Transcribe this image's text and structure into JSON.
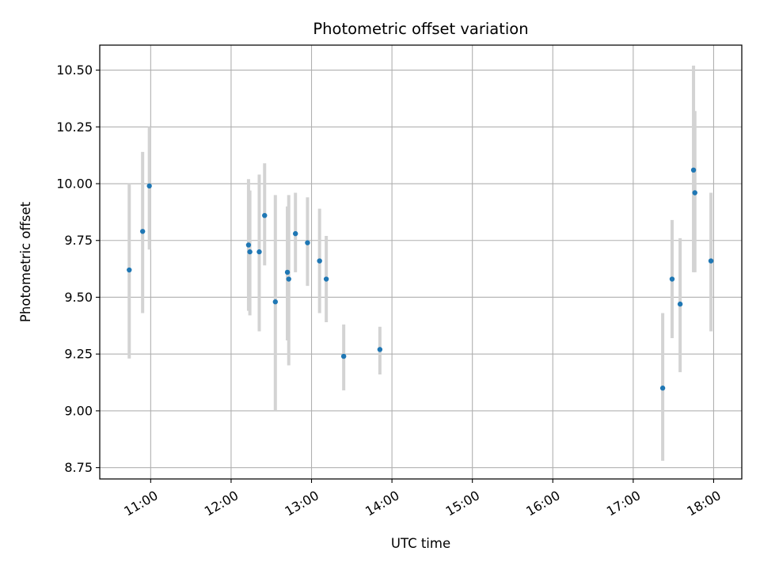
{
  "chart_data": {
    "type": "scatter",
    "title": "Photometric offset variation",
    "xlabel": "UTC time",
    "ylabel": "Photometric offset",
    "x_is_time": true,
    "xlim": [
      "10:22",
      "18:21"
    ],
    "ylim": [
      8.7,
      10.61
    ],
    "xticks": [
      "11:00",
      "12:00",
      "13:00",
      "14:00",
      "15:00",
      "16:00",
      "17:00",
      "18:00"
    ],
    "yticks": [
      "8.75",
      "9.00",
      "9.25",
      "9.50",
      "9.75",
      "10.00",
      "10.25",
      "10.50"
    ],
    "grid": true,
    "colors": {
      "point": "#1f77b4",
      "errorbar": "#d3d3d3",
      "grid": "#b0b0b0"
    },
    "points": [
      {
        "x": "10:44",
        "y": 9.62,
        "ylo": 9.23,
        "yhi": 10.0
      },
      {
        "x": "10:54",
        "y": 9.79,
        "ylo": 9.43,
        "yhi": 10.14
      },
      {
        "x": "10:59",
        "y": 9.99,
        "ylo": 9.71,
        "yhi": 10.25
      },
      {
        "x": "12:13",
        "y": 9.73,
        "ylo": 9.44,
        "yhi": 10.02
      },
      {
        "x": "12:14",
        "y": 9.7,
        "ylo": 9.42,
        "yhi": 9.97
      },
      {
        "x": "12:21",
        "y": 9.7,
        "ylo": 9.35,
        "yhi": 10.04
      },
      {
        "x": "12:25",
        "y": 9.86,
        "ylo": 9.64,
        "yhi": 10.09
      },
      {
        "x": "12:33",
        "y": 9.48,
        "ylo": 9.0,
        "yhi": 9.95
      },
      {
        "x": "12:42",
        "y": 9.61,
        "ylo": 9.31,
        "yhi": 9.9
      },
      {
        "x": "12:43",
        "y": 9.58,
        "ylo": 9.2,
        "yhi": 9.95
      },
      {
        "x": "12:48",
        "y": 9.78,
        "ylo": 9.61,
        "yhi": 9.96
      },
      {
        "x": "12:57",
        "y": 9.74,
        "ylo": 9.55,
        "yhi": 9.94
      },
      {
        "x": "13:06",
        "y": 9.66,
        "ylo": 9.43,
        "yhi": 9.89
      },
      {
        "x": "13:11",
        "y": 9.58,
        "ylo": 9.39,
        "yhi": 9.77
      },
      {
        "x": "13:24",
        "y": 9.24,
        "ylo": 9.09,
        "yhi": 9.38
      },
      {
        "x": "13:51",
        "y": 9.27,
        "ylo": 9.16,
        "yhi": 9.37
      },
      {
        "x": "17:22",
        "y": 9.1,
        "ylo": 8.78,
        "yhi": 9.43
      },
      {
        "x": "17:29",
        "y": 9.58,
        "ylo": 9.32,
        "yhi": 9.84
      },
      {
        "x": "17:35",
        "y": 9.47,
        "ylo": 9.17,
        "yhi": 9.76
      },
      {
        "x": "17:45",
        "y": 10.06,
        "ylo": 9.61,
        "yhi": 10.52
      },
      {
        "x": "17:46",
        "y": 9.96,
        "ylo": 9.61,
        "yhi": 10.32
      },
      {
        "x": "17:58",
        "y": 9.66,
        "ylo": 9.35,
        "yhi": 9.96
      }
    ]
  }
}
